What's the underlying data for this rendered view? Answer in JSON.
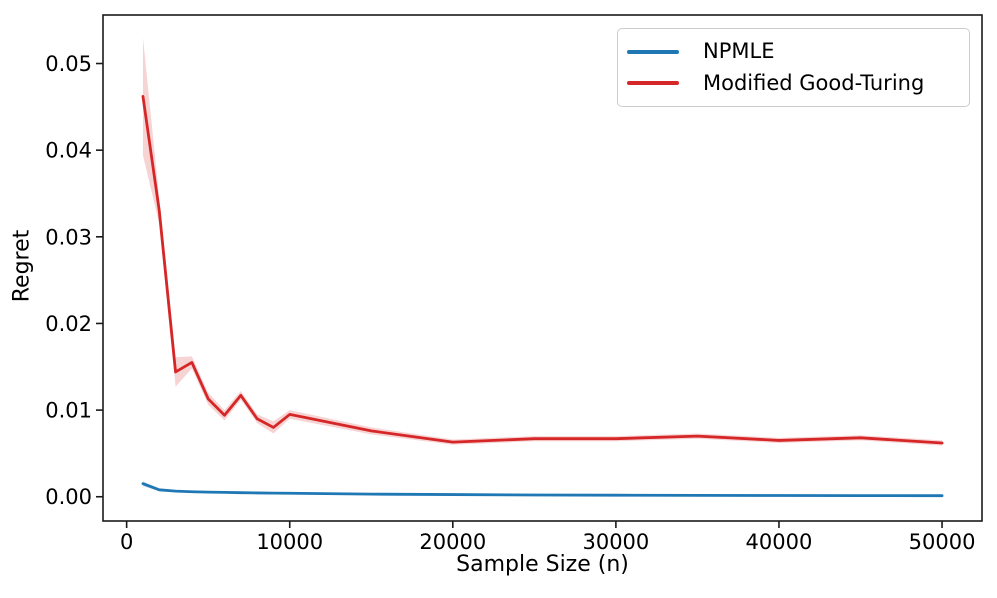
{
  "figure": {
    "background": "#ffffff"
  },
  "chart_data": {
    "type": "line",
    "title": "",
    "xlabel": "Sample Size (n)",
    "ylabel": "Regret",
    "grid": false,
    "legend_position": "upper right",
    "xlim": [
      -1450,
      52450
    ],
    "ylim": [
      -0.0028,
      0.0556
    ],
    "x_ticks": {
      "values": [
        0,
        10000,
        20000,
        30000,
        40000,
        50000
      ],
      "labels": [
        "0",
        "10000",
        "20000",
        "30000",
        "40000",
        "50000"
      ]
    },
    "y_ticks": {
      "values": [
        0.0,
        0.01,
        0.02,
        0.03,
        0.04,
        0.05
      ],
      "labels": [
        "0.00",
        "0.01",
        "0.02",
        "0.03",
        "0.04",
        "0.05"
      ]
    },
    "x": [
      1000,
      2000,
      3000,
      4000,
      5000,
      6000,
      7000,
      8000,
      9000,
      10000,
      15000,
      20000,
      25000,
      30000,
      35000,
      40000,
      45000,
      50000
    ],
    "series": [
      {
        "name": "NPMLE",
        "color": "#1f77b4",
        "band_color": "#1f77b4",
        "band_alpha": 0.2,
        "values": [
          0.0015,
          0.0008,
          0.00065,
          0.00058,
          0.00053,
          0.0005,
          0.00047,
          0.00044,
          0.00042,
          0.0004,
          0.0003,
          0.00025,
          0.0002,
          0.00018,
          0.00016,
          0.00014,
          0.00013,
          0.00012
        ],
        "band_halfwidth": [
          0.0003,
          0.00015,
          0.0001,
          0.0001,
          0.0001,
          0.0001,
          0.0001,
          0.0001,
          0.0001,
          0.0001,
          0.0001,
          0.0001,
          0.0001,
          0.0001,
          0.0001,
          0.0001,
          0.0001,
          0.0001
        ]
      },
      {
        "name": "Modified Good-Turing",
        "color": "#d62728",
        "band_color": "#d62728",
        "band_alpha": 0.2,
        "values": [
          0.0462,
          0.033,
          0.0144,
          0.0155,
          0.0113,
          0.0094,
          0.0117,
          0.009,
          0.008,
          0.0095,
          0.0076,
          0.0063,
          0.0067,
          0.0067,
          0.007,
          0.0065,
          0.0068,
          0.0062
        ],
        "band_halfwidth": [
          0.0068,
          0.0015,
          0.0017,
          0.0007,
          0.0007,
          0.0006,
          0.0005,
          0.0005,
          0.0007,
          0.0005,
          0.0004,
          0.0003,
          0.0003,
          0.0003,
          0.0003,
          0.0003,
          0.0003,
          0.0003
        ]
      }
    ],
    "style": {
      "spine_color": "#1a1a1a",
      "tick_label_color": "#000000",
      "line_width": 2.8,
      "tick_font_size": 21
    }
  }
}
